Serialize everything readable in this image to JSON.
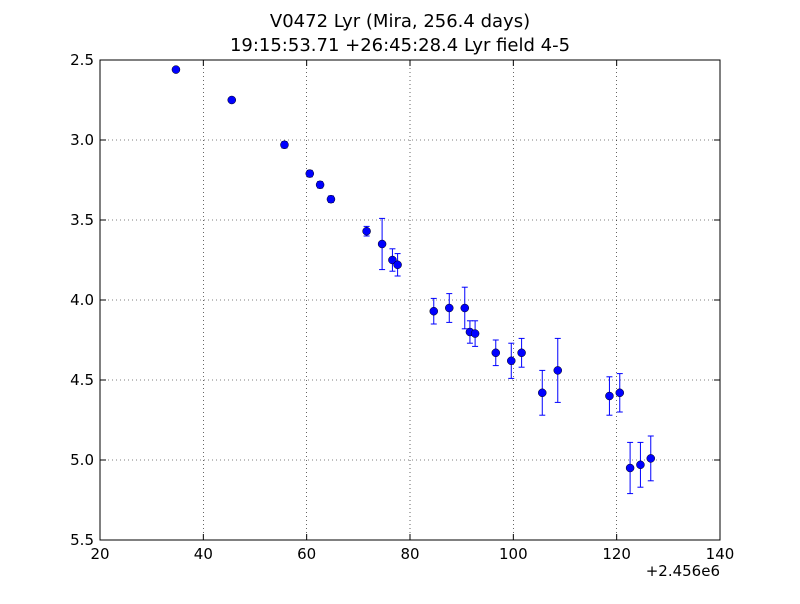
{
  "chart_data": {
    "type": "scatter",
    "title": "V0472 Lyr (Mira, 256.4 days)",
    "subtitle": "19:15:53.71 +26:45:28.4 Lyr field 4-5",
    "xlabel": "",
    "ylabel": "",
    "x_offset_label": "+2.456e6",
    "xlim": [
      20,
      140
    ],
    "ylim": [
      2.5,
      5.5
    ],
    "y_inverted": true,
    "grid": true,
    "marker_color": "#0000ff",
    "errorbar_color": "#0000ff",
    "x_ticks": [
      20,
      40,
      60,
      80,
      100,
      120,
      140
    ],
    "x_tick_labels": [
      "20",
      "40",
      "60",
      "80",
      "100",
      "120",
      "140"
    ],
    "y_ticks": [
      2.5,
      3.0,
      3.5,
      4.0,
      4.5,
      5.0,
      5.5
    ],
    "y_tick_labels": [
      "2.5",
      "3.0",
      "3.5",
      "4.0",
      "4.5",
      "5.0",
      "5.5"
    ],
    "points": [
      {
        "x": 34.7,
        "y": 2.56,
        "err": 0.01
      },
      {
        "x": 45.5,
        "y": 2.75,
        "err": 0.01
      },
      {
        "x": 55.7,
        "y": 3.03,
        "err": 0.02
      },
      {
        "x": 60.6,
        "y": 3.21,
        "err": 0.02
      },
      {
        "x": 62.6,
        "y": 3.28,
        "err": 0.02
      },
      {
        "x": 64.7,
        "y": 3.37,
        "err": 0.02
      },
      {
        "x": 71.6,
        "y": 3.57,
        "err": 0.03
      },
      {
        "x": 74.6,
        "y": 3.65,
        "err": 0.16
      },
      {
        "x": 76.6,
        "y": 3.75,
        "err": 0.07
      },
      {
        "x": 77.6,
        "y": 3.78,
        "err": 0.07
      },
      {
        "x": 84.6,
        "y": 4.07,
        "err": 0.08
      },
      {
        "x": 87.6,
        "y": 4.05,
        "err": 0.09
      },
      {
        "x": 90.6,
        "y": 4.05,
        "err": 0.13
      },
      {
        "x": 91.6,
        "y": 4.2,
        "err": 0.07
      },
      {
        "x": 92.6,
        "y": 4.21,
        "err": 0.08
      },
      {
        "x": 96.6,
        "y": 4.33,
        "err": 0.08
      },
      {
        "x": 99.6,
        "y": 4.38,
        "err": 0.11
      },
      {
        "x": 101.6,
        "y": 4.33,
        "err": 0.09
      },
      {
        "x": 105.6,
        "y": 4.58,
        "err": 0.14
      },
      {
        "x": 108.6,
        "y": 4.44,
        "err": 0.2
      },
      {
        "x": 118.6,
        "y": 4.6,
        "err": 0.12
      },
      {
        "x": 120.6,
        "y": 4.58,
        "err": 0.12
      },
      {
        "x": 122.6,
        "y": 5.05,
        "err": 0.16
      },
      {
        "x": 124.6,
        "y": 5.03,
        "err": 0.14
      },
      {
        "x": 126.6,
        "y": 4.99,
        "err": 0.14
      }
    ]
  }
}
